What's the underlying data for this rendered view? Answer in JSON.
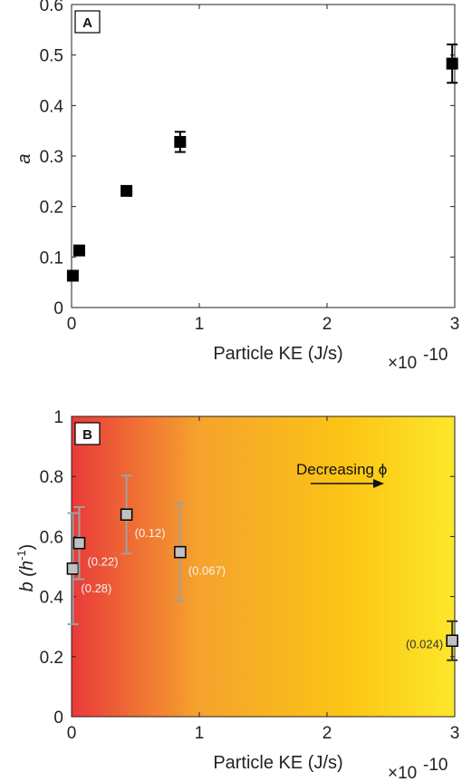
{
  "chart_data": [
    {
      "type": "scatter",
      "panel_label": "A",
      "xlabel": "Particle KE (J/s)",
      "ylabel": "a",
      "x_multiplier": "×10",
      "x_exponent": "-10",
      "xlim": [
        0,
        3
      ],
      "ylim": [
        0,
        0.6
      ],
      "xticks": [
        "0",
        "1",
        "2",
        "3"
      ],
      "yticks": [
        "0",
        "0.1",
        "0.2",
        "0.3",
        "0.4",
        "0.5",
        "0.6"
      ],
      "grid": false,
      "marker_color": "#000000",
      "points": [
        {
          "x": 0.01,
          "y": 0.063,
          "err": null
        },
        {
          "x": 0.06,
          "y": 0.113,
          "err": null
        },
        {
          "x": 0.43,
          "y": 0.231,
          "err": null
        },
        {
          "x": 0.85,
          "y": 0.328,
          "err": 0.02
        },
        {
          "x": 2.98,
          "y": 0.483,
          "err": 0.038
        }
      ]
    },
    {
      "type": "scatter",
      "panel_label": "B",
      "xlabel": "Particle KE (J/s)",
      "ylabel": "b (h",
      "ylabel_sup": "-1",
      "ylabel_close": ")",
      "x_multiplier": "×10",
      "x_exponent": "-10",
      "xlim": [
        0,
        3
      ],
      "ylim": [
        0,
        1
      ],
      "xticks": [
        "0",
        "1",
        "2",
        "3"
      ],
      "yticks": [
        "0",
        "0.2",
        "0.4",
        "0.6",
        "0.8",
        "1"
      ],
      "grid": false,
      "background_gradient": [
        "#e93a3a",
        "#f5a22e",
        "#fbc515",
        "#fde72a"
      ],
      "marker_color": "#c0c0c0",
      "errorbar_color": "#a0a0a0",
      "arrow_text": "Decreasing ϕ",
      "points": [
        {
          "x": 0.01,
          "y": 0.493,
          "err": 0.185,
          "label": "(0.28)"
        },
        {
          "x": 0.06,
          "y": 0.578,
          "err": 0.12,
          "label": "(0.22)"
        },
        {
          "x": 0.43,
          "y": 0.673,
          "err": 0.13,
          "label": "(0.12)"
        },
        {
          "x": 0.85,
          "y": 0.548,
          "err": 0.163,
          "label": "(0.067)"
        },
        {
          "x": 2.98,
          "y": 0.253,
          "err": 0.065,
          "label": "(0.024)"
        }
      ]
    }
  ]
}
